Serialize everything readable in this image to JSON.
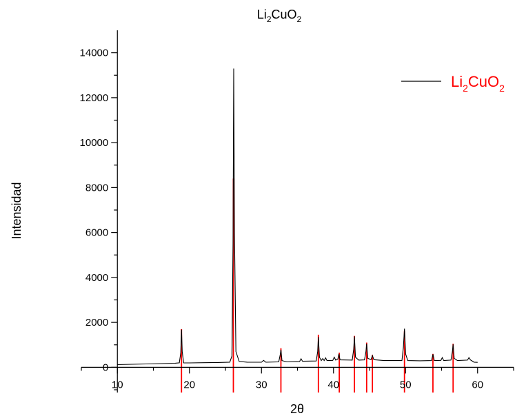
{
  "chart_data": {
    "type": "line",
    "title": {
      "main": "Li",
      "sub1": "2",
      "mid": "CuO",
      "sub2": "2"
    },
    "xlabel": "2θ",
    "ylabel": "Intensidad",
    "xlim": [
      5,
      65
    ],
    "ylim": [
      -1000,
      15000
    ],
    "x_ticks": [
      10,
      20,
      30,
      40,
      50,
      60
    ],
    "x_minor_ticks": [
      5,
      15,
      25,
      35,
      45,
      55,
      65
    ],
    "y_ticks": [
      0,
      2000,
      4000,
      6000,
      8000,
      10000,
      12000,
      14000
    ],
    "y_minor_ticks": [
      -1000,
      1000,
      3000,
      5000,
      7000,
      9000,
      11000,
      13000
    ],
    "grid": false,
    "legend_position": "top-right",
    "legend": {
      "main": "Li",
      "sub1": "2",
      "mid": "CuO",
      "sub2": "2"
    },
    "colors": {
      "measured": "#000000",
      "reference": "#ff0000",
      "axes": "#000000"
    },
    "measured_pattern": {
      "points": [
        [
          10,
          120
        ],
        [
          12,
          135
        ],
        [
          14,
          150
        ],
        [
          16,
          165
        ],
        [
          18,
          180
        ],
        [
          18.6,
          200
        ],
        [
          18.8,
          650
        ],
        [
          18.9,
          1680
        ],
        [
          19.0,
          700
        ],
        [
          19.2,
          200
        ],
        [
          20,
          195
        ],
        [
          22,
          205
        ],
        [
          24,
          215
        ],
        [
          25.6,
          230
        ],
        [
          25.9,
          500
        ],
        [
          26.05,
          5500
        ],
        [
          26.15,
          13300
        ],
        [
          26.25,
          6000
        ],
        [
          26.45,
          700
        ],
        [
          26.9,
          260
        ],
        [
          28,
          230
        ],
        [
          30,
          225
        ],
        [
          30.3,
          310
        ],
        [
          30.6,
          225
        ],
        [
          32.4,
          240
        ],
        [
          32.6,
          550
        ],
        [
          32.7,
          780
        ],
        [
          32.85,
          300
        ],
        [
          33.5,
          240
        ],
        [
          35.3,
          260
        ],
        [
          35.5,
          380
        ],
        [
          35.7,
          270
        ],
        [
          37.6,
          280
        ],
        [
          37.8,
          700
        ],
        [
          37.9,
          1350
        ],
        [
          38.05,
          450
        ],
        [
          38.3,
          300
        ],
        [
          38.5,
          390
        ],
        [
          38.7,
          300
        ],
        [
          38.9,
          420
        ],
        [
          39.1,
          300
        ],
        [
          39.9,
          310
        ],
        [
          40.1,
          450
        ],
        [
          40.3,
          320
        ],
        [
          40.6,
          360
        ],
        [
          40.75,
          600
        ],
        [
          40.9,
          330
        ],
        [
          42.6,
          320
        ],
        [
          42.8,
          800
        ],
        [
          42.9,
          1380
        ],
        [
          43.05,
          450
        ],
        [
          43.5,
          320
        ],
        [
          44.3,
          330
        ],
        [
          44.5,
          700
        ],
        [
          44.6,
          1050
        ],
        [
          44.75,
          400
        ],
        [
          45.2,
          340
        ],
        [
          45.4,
          520
        ],
        [
          45.6,
          340
        ],
        [
          47,
          300
        ],
        [
          49.5,
          300
        ],
        [
          49.7,
          900
        ],
        [
          49.85,
          1720
        ],
        [
          50.0,
          600
        ],
        [
          50.3,
          300
        ],
        [
          52,
          290
        ],
        [
          53.6,
          300
        ],
        [
          53.8,
          580
        ],
        [
          54.0,
          300
        ],
        [
          54.9,
          310
        ],
        [
          55.1,
          430
        ],
        [
          55.3,
          300
        ],
        [
          56.3,
          320
        ],
        [
          56.5,
          700
        ],
        [
          56.6,
          1020
        ],
        [
          56.75,
          400
        ],
        [
          57.2,
          300
        ],
        [
          58.6,
          320
        ],
        [
          58.8,
          430
        ],
        [
          59.0,
          330
        ],
        [
          59.5,
          230
        ],
        [
          60,
          220
        ]
      ]
    },
    "reference_lines": [
      {
        "x": 18.9,
        "intensity": 1700
      },
      {
        "x": 26.1,
        "intensity": 8400
      },
      {
        "x": 32.7,
        "intensity": 850
      },
      {
        "x": 37.9,
        "intensity": 1450
      },
      {
        "x": 40.8,
        "intensity": 650
      },
      {
        "x": 42.9,
        "intensity": 1400
      },
      {
        "x": 44.6,
        "intensity": 1100
      },
      {
        "x": 45.4,
        "intensity": 550
      },
      {
        "x": 49.85,
        "intensity": 1600
      },
      {
        "x": 53.8,
        "intensity": 600
      },
      {
        "x": 56.6,
        "intensity": 1050
      }
    ]
  }
}
